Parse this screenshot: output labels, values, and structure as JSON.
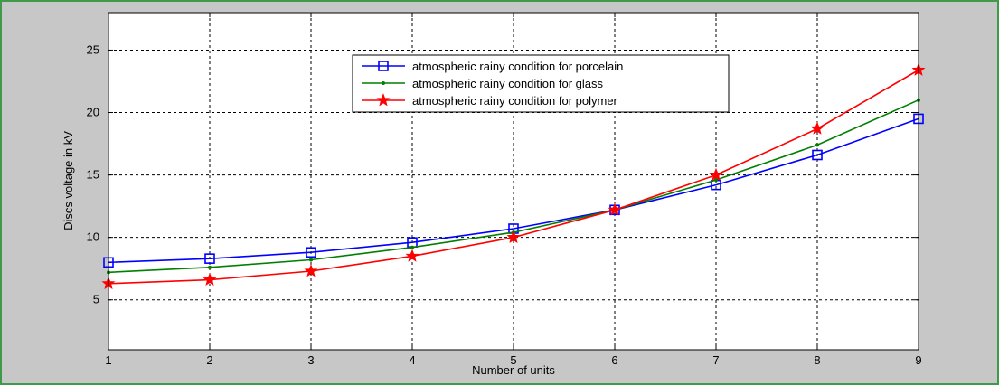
{
  "chart_data": {
    "type": "line",
    "title": "",
    "xlabel": "Number of units",
    "ylabel": "Discs voltage in kV",
    "xlim": [
      1,
      9
    ],
    "ylim": [
      1,
      28
    ],
    "xticks": [
      1,
      2,
      3,
      4,
      5,
      6,
      7,
      8,
      9
    ],
    "yticks": [
      5,
      10,
      15,
      20,
      25
    ],
    "grid": true,
    "legend_position": "top-center",
    "x": [
      1,
      2,
      3,
      4,
      5,
      6,
      7,
      8,
      9
    ],
    "series": [
      {
        "name": "atmospheric rainy condition for porcelain",
        "color": "#0000ff",
        "marker": "square",
        "values": [
          8.0,
          8.3,
          8.8,
          9.6,
          10.7,
          12.2,
          14.2,
          16.6,
          19.5
        ]
      },
      {
        "name": "atmospheric rainy condition for glass",
        "color": "#007f00",
        "marker": "dot",
        "values": [
          7.2,
          7.6,
          8.2,
          9.2,
          10.4,
          12.2,
          14.6,
          17.4,
          21.0
        ]
      },
      {
        "name": "atmospheric rainy condition for polymer",
        "color": "#ff0000",
        "marker": "star",
        "values": [
          6.3,
          6.6,
          7.3,
          8.5,
          10.0,
          12.2,
          15.0,
          18.7,
          23.4
        ]
      }
    ]
  }
}
